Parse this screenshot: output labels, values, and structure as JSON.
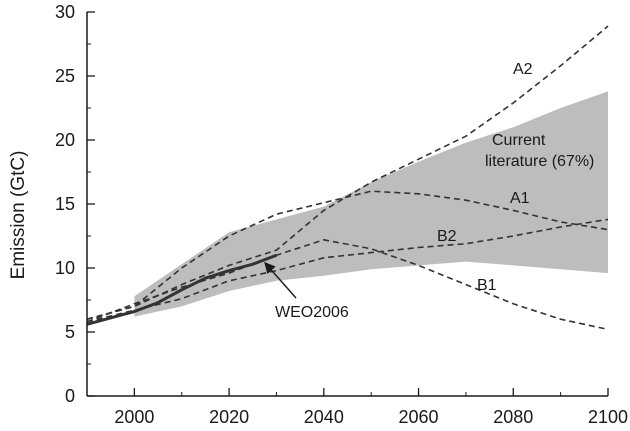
{
  "chart_data": {
    "type": "line",
    "title": "",
    "xlabel": "",
    "ylabel": "Emission (GtC)",
    "xlim": [
      1990,
      2100
    ],
    "ylim": [
      0,
      30
    ],
    "x_ticks": [
      2000,
      2020,
      2040,
      2060,
      2080,
      2100
    ],
    "y_ticks": [
      0,
      5,
      10,
      15,
      20,
      25,
      30
    ],
    "grid": false,
    "band": {
      "label": "Current literature (67%)",
      "label_lines": [
        "Current",
        "literature (67%)"
      ],
      "color": "#bdbdbd",
      "x": [
        2000,
        2010,
        2020,
        2030,
        2040,
        2050,
        2060,
        2070,
        2080,
        2090,
        2100
      ],
      "upper": [
        7.8,
        10.3,
        12.8,
        13.8,
        14.8,
        16.7,
        18.3,
        19.8,
        21.0,
        22.5,
        23.8
      ],
      "lower": [
        6.2,
        7.0,
        8.2,
        9.0,
        9.4,
        9.9,
        10.2,
        10.5,
        10.2,
        9.9,
        9.6
      ]
    },
    "series": [
      {
        "name": "A2",
        "style": "dashed",
        "x": [
          1990,
          2000,
          2010,
          2020,
          2030,
          2040,
          2050,
          2060,
          2070,
          2080,
          2090,
          2100
        ],
        "y": [
          6.0,
          7.0,
          8.7,
          10.2,
          11.4,
          14.5,
          16.7,
          18.5,
          20.3,
          22.9,
          25.8,
          28.9
        ]
      },
      {
        "name": "A1",
        "style": "dashed",
        "x": [
          1990,
          2000,
          2010,
          2020,
          2030,
          2040,
          2050,
          2060,
          2070,
          2080,
          2090,
          2100
        ],
        "y": [
          6.0,
          7.0,
          10.0,
          12.5,
          14.2,
          15.1,
          16.0,
          15.8,
          15.3,
          14.5,
          13.6,
          13.0
        ]
      },
      {
        "name": "B2",
        "style": "dashed",
        "x": [
          1990,
          2000,
          2010,
          2020,
          2030,
          2040,
          2050,
          2060,
          2070,
          2080,
          2090,
          2100
        ],
        "y": [
          5.8,
          6.7,
          7.6,
          9.0,
          9.8,
          10.8,
          11.2,
          11.6,
          11.9,
          12.5,
          13.2,
          13.8
        ]
      },
      {
        "name": "B1",
        "style": "dashed",
        "x": [
          1990,
          2000,
          2010,
          2020,
          2030,
          2040,
          2050,
          2060,
          2070,
          2080,
          2090,
          2100
        ],
        "y": [
          5.8,
          7.2,
          8.5,
          9.6,
          11.0,
          12.2,
          11.5,
          10.2,
          8.7,
          7.2,
          6.0,
          5.2
        ]
      },
      {
        "name": "WEO2006",
        "style": "solid",
        "x": [
          1990,
          2000,
          2005,
          2010,
          2015,
          2020,
          2025,
          2030
        ],
        "y": [
          5.6,
          6.6,
          7.3,
          8.3,
          9.2,
          9.8,
          10.3,
          11.0
        ]
      }
    ],
    "annotations": [
      "A2",
      "A1",
      "B2",
      "B1",
      "WEO2006"
    ]
  }
}
